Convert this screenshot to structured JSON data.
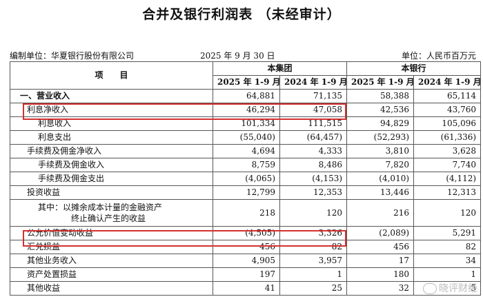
{
  "title": "合并及银行利润表 （未经审计）",
  "meta": {
    "unit_left": "编制单位：华夏银行股份有限公司",
    "date": "2025 年 9 月 30 日",
    "unit_right": "单位：人民币百万元"
  },
  "header": {
    "item": "项　　目",
    "group": "本集团",
    "bank": "本银行",
    "periods": [
      "2025 年 1-9 月",
      "2024 年 1-9 月",
      "2025 年 1-9 月",
      "2024 年 1-9 月"
    ]
  },
  "rows": [
    {
      "label": "一、营业收入",
      "values": [
        "64,881",
        "71,135",
        "58,388",
        "65,114"
      ]
    },
    {
      "label": "利息净收入",
      "values": [
        "46,294",
        "47,058",
        "42,536",
        "43,760"
      ]
    },
    {
      "label": "利息收入",
      "values": [
        "101,334",
        "111,515",
        "94,829",
        "105,096"
      ]
    },
    {
      "label": "利息支出",
      "values": [
        "(55,040)",
        "(64,457)",
        "(52,293)",
        "(61,336)"
      ]
    },
    {
      "label": "手续费及佣金净收入",
      "values": [
        "4,694",
        "4,333",
        "3,810",
        "3,628"
      ]
    },
    {
      "label": "手续费及佣金收入",
      "values": [
        "8,759",
        "8,486",
        "7,820",
        "7,740"
      ]
    },
    {
      "label": "手续费及佣金支出",
      "values": [
        "(4,065)",
        "(4,153)",
        "(4,010)",
        "(4,112)"
      ]
    },
    {
      "label": "投资收益",
      "values": [
        "12,799",
        "12,353",
        "13,446",
        "12,313"
      ]
    },
    {
      "label1": "其中：以摊余成本计量的金融资产",
      "label2": "终止确认产生的收益",
      "values": [
        "218",
        "120",
        "216",
        "120"
      ]
    },
    {
      "label": "公允价值变动收益",
      "values": [
        "(4,505)",
        "3,326",
        "(2,089)",
        "5,291"
      ]
    },
    {
      "label": "汇兑损益",
      "values": [
        "456",
        "82",
        "456",
        "82"
      ]
    },
    {
      "label": "其他业务收入",
      "values": [
        "4,905",
        "3,957",
        "17",
        "34"
      ]
    },
    {
      "label": "资产处置损益",
      "values": [
        "197",
        "1",
        "180",
        "1"
      ]
    },
    {
      "label": "其他收益",
      "values": [
        "41",
        "25",
        "32",
        "5"
      ]
    }
  ],
  "watermark": "晓评财经"
}
